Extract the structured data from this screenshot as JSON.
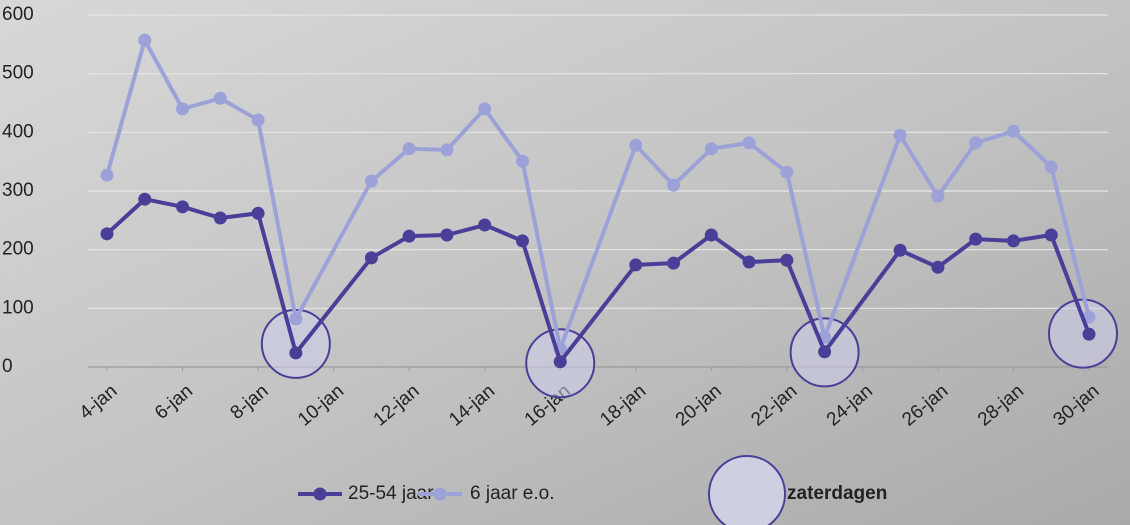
{
  "chart_data": {
    "type": "line",
    "x": [
      4,
      5,
      6,
      7,
      8,
      9,
      11,
      12,
      13,
      14,
      15,
      16,
      18,
      19,
      20,
      21,
      22,
      23,
      25,
      26,
      27,
      28,
      29,
      30
    ],
    "xlim": [
      4,
      30
    ],
    "xticks": [
      {
        "value": 4,
        "label": "4-jan"
      },
      {
        "value": 6,
        "label": "6-jan"
      },
      {
        "value": 8,
        "label": "8-jan"
      },
      {
        "value": 10,
        "label": "10-jan"
      },
      {
        "value": 12,
        "label": "12-jan"
      },
      {
        "value": 14,
        "label": "14-jan"
      },
      {
        "value": 16,
        "label": "16-jan"
      },
      {
        "value": 18,
        "label": "18-jan"
      },
      {
        "value": 20,
        "label": "20-jan"
      },
      {
        "value": 22,
        "label": "22-jan"
      },
      {
        "value": 24,
        "label": "24-jan"
      },
      {
        "value": 26,
        "label": "26-jan"
      },
      {
        "value": 28,
        "label": "28-jan"
      },
      {
        "value": 30,
        "label": "30-jan"
      }
    ],
    "ylim": [
      0,
      600
    ],
    "yticks": [
      0,
      100,
      200,
      300,
      400,
      500,
      600
    ],
    "grid": true,
    "series": [
      {
        "name": "25-54 jaar",
        "color": "#4a3f98",
        "values": [
          227,
          286,
          273,
          254,
          262,
          24,
          186,
          223,
          225,
          242,
          215,
          9,
          174,
          177,
          225,
          179,
          182,
          26,
          199,
          170,
          218,
          215,
          225,
          56
        ]
      },
      {
        "name": "6 jaar e.o.",
        "color": "#9ca2d8",
        "values": [
          327,
          557,
          440,
          458,
          421,
          82,
          317,
          372,
          370,
          440,
          351,
          31,
          378,
          310,
          372,
          382,
          332,
          51,
          395,
          291,
          382,
          402,
          341,
          85
        ]
      }
    ],
    "highlight": {
      "name": "zaterdagen",
      "x": [
        9,
        16,
        23,
        30
      ]
    }
  }
}
